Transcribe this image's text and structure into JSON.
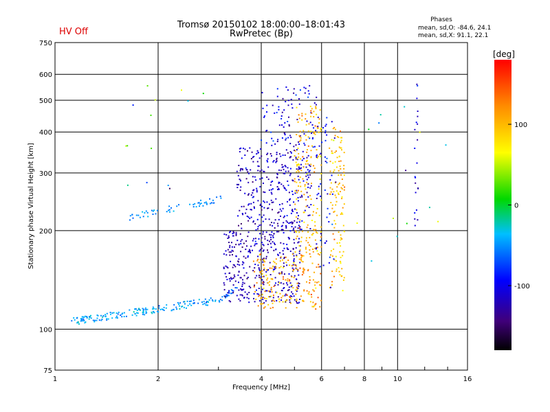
{
  "chart_data": {
    "type": "scatter",
    "title": "Tromsø 20150102 18:00:00–18:01:43",
    "subtitle": "RwPretec (Bp)",
    "status": "HV Off",
    "status_color": "#dd0000",
    "phases": {
      "heading": "Phases",
      "o_line": "mean, sd,O: -84.6, 24.1",
      "x_line": "mean, sd,X:  91.1, 22.1"
    },
    "xlabel": "Frequency [MHz]",
    "ylabel": "Stationary phase Virtual Height [km]",
    "x_scale": "log",
    "y_scale": "log",
    "xlim": [
      1,
      16
    ],
    "ylim": [
      75,
      750
    ],
    "x_ticks": [
      1,
      2,
      4,
      6,
      8,
      10,
      16
    ],
    "x_tick_labels": [
      "1",
      "2",
      "4",
      "6",
      "8",
      "10",
      "16"
    ],
    "y_ticks": [
      75,
      100,
      200,
      300,
      400,
      500,
      600,
      750
    ],
    "y_tick_labels": [
      "75",
      "100",
      "200",
      "300",
      "400",
      "500",
      "600",
      "750"
    ],
    "grid": true,
    "colorbar": {
      "label": "[deg]",
      "range": [
        -180,
        180
      ],
      "ticks": [
        100,
        0,
        -100
      ],
      "tick_labels": [
        "100",
        "0",
        "-100"
      ]
    },
    "clusters": [
      {
        "name": "low-trace",
        "f": [
          1.1,
          2.9
        ],
        "h": [
          105,
          122
        ],
        "trend": 0.09,
        "phase": -45,
        "spread": 20,
        "n": 170
      },
      {
        "name": "low-trace-end",
        "f": [
          2.9,
          3.4
        ],
        "h": [
          120,
          133
        ],
        "trend": 0.04,
        "phase": -60,
        "spread": 20,
        "n": 25
      },
      {
        "name": "mid-trace",
        "f": [
          1.65,
          3.1
        ],
        "h": [
          220,
          250
        ],
        "trend": 0.05,
        "phase": -50,
        "spread": 15,
        "n": 55
      },
      {
        "name": "o-spread-lower",
        "f": [
          3.1,
          5.2
        ],
        "h": [
          120,
          200
        ],
        "trend": 0,
        "phase": -120,
        "spread": 25,
        "n": 360
      },
      {
        "name": "o-spread-upper",
        "f": [
          3.4,
          5.6
        ],
        "h": [
          200,
          360
        ],
        "trend": 0,
        "phase": -115,
        "spread": 25,
        "n": 330
      },
      {
        "name": "o-sparse-top",
        "f": [
          4.0,
          5.8
        ],
        "h": [
          360,
          560
        ],
        "trend": 0,
        "phase": -105,
        "spread": 30,
        "n": 90
      },
      {
        "name": "x-spread-lower",
        "f": [
          3.8,
          6.0
        ],
        "h": [
          115,
          170
        ],
        "trend": 0,
        "phase": 110,
        "spread": 35,
        "n": 200
      },
      {
        "name": "x-spread-upper",
        "f": [
          5.0,
          6.0
        ],
        "h": [
          170,
          480
        ],
        "trend": 0,
        "phase": 100,
        "spread": 30,
        "n": 180
      },
      {
        "name": "x-band-7mhz",
        "f": [
          6.3,
          7.0
        ],
        "h": [
          130,
          420
        ],
        "trend": 0,
        "phase": 95,
        "spread": 30,
        "n": 130
      },
      {
        "name": "o-band-6mhz",
        "f": [
          5.6,
          6.6
        ],
        "h": [
          130,
          450
        ],
        "trend": 0,
        "phase": -100,
        "spread": 25,
        "n": 55
      },
      {
        "name": "column-11mhz",
        "f": [
          11.2,
          11.5
        ],
        "h": [
          200,
          610
        ],
        "trend": 0,
        "phase": -110,
        "spread": 25,
        "n": 22
      },
      {
        "name": "scatter-right",
        "f": [
          7.5,
          14
        ],
        "h": [
          160,
          560
        ],
        "trend": 0,
        "phase": 0,
        "spread": 90,
        "n": 14
      },
      {
        "name": "isolated-left",
        "f": [
          1.6,
          2.8
        ],
        "h": [
          260,
          580
        ],
        "trend": 0,
        "phase": 0,
        "spread": 110,
        "n": 14
      }
    ]
  }
}
